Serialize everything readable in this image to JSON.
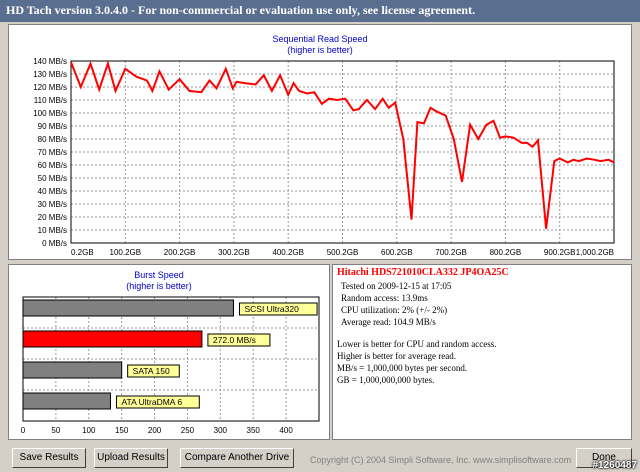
{
  "window": {
    "title": "HD Tach version 3.0.4.0 - For non-commercial or evaluation use only, see license agreement."
  },
  "chart_data": [
    {
      "type": "line",
      "title": "Sequential Read Speed",
      "subtitle": "(higher is better)",
      "xlabel": "",
      "ylabel": "",
      "xlim": [
        0,
        1000
      ],
      "ylim": [
        0,
        140
      ],
      "x_ticks": [
        "0.2GB",
        "100.2GB",
        "200.2GB",
        "300.2GB",
        "400.2GB",
        "500.2GB",
        "600.2GB",
        "700.2GB",
        "800.2GB",
        "900.2GB",
        "1,000.2GB"
      ],
      "y_ticks": [
        "0 MB/s",
        "10 MB/s",
        "20 MB/s",
        "30 MB/s",
        "40 MB/s",
        "50 MB/s",
        "60 MB/s",
        "70 MB/s",
        "80 MB/s",
        "90 MB/s",
        "100 MB/s",
        "110 MB/s",
        "120 MB/s",
        "130 MB/s",
        "140 MB/s"
      ],
      "grid": true,
      "series_color": "#ff0000",
      "x": [
        0,
        18,
        36,
        52,
        68,
        82,
        100,
        120,
        140,
        150,
        163,
        180,
        200,
        218,
        240,
        255,
        268,
        285,
        298,
        305,
        320,
        340,
        355,
        370,
        385,
        400,
        410,
        420,
        435,
        448,
        462,
        475,
        490,
        505,
        520,
        530,
        545,
        560,
        574,
        585,
        597,
        612,
        627,
        638,
        650,
        662,
        674,
        690,
        705,
        720,
        735,
        750,
        765,
        778,
        790,
        800,
        815,
        830,
        840,
        850,
        860,
        875,
        890,
        900,
        915,
        925,
        935,
        950,
        965,
        975,
        990,
        1000
      ],
      "values": [
        139,
        120,
        138,
        118,
        138,
        117,
        134,
        128,
        125,
        117,
        132,
        118,
        126,
        117,
        116,
        125,
        119,
        134,
        119,
        124,
        123,
        122,
        129,
        117,
        129,
        114,
        123,
        117,
        115,
        116,
        107,
        111,
        110,
        111,
        102,
        103,
        110,
        103,
        111,
        104,
        108,
        80,
        18,
        93,
        92,
        104,
        101,
        98,
        80,
        47,
        91,
        80,
        91,
        94,
        81,
        82,
        81,
        77,
        77,
        74,
        79,
        11,
        63,
        65,
        62,
        64,
        63,
        65,
        64,
        63,
        64,
        62
      ]
    },
    {
      "type": "bar",
      "orientation": "horizontal",
      "title": "Burst Speed",
      "subtitle": "(higher is better)",
      "xlim": [
        0,
        450
      ],
      "x_ticks": [
        "0",
        "50",
        "100",
        "150",
        "200",
        "250",
        "300",
        "350",
        "400"
      ],
      "categories": [
        "SCSI Ultra320",
        "272.0 MB/s",
        "SATA 150",
        "ATA UltraDMA 6"
      ],
      "values": [
        320,
        272,
        150,
        133
      ],
      "colors": [
        "#808080",
        "#ff0000",
        "#808080",
        "#808080"
      ]
    }
  ],
  "info": {
    "drive": "Hitachi HDS721010CLA332 JP4OA25C",
    "tested": "Tested on 2009-12-15 at 17:05",
    "random_access": "Random access: 13.9ms",
    "cpu": "CPU utilization: 2% (+/- 2%)",
    "average_read": "Average read: 104.9 MB/s",
    "note1": "Lower is better for CPU and random access.",
    "note2": "Higher is better for average read.",
    "note3": "MB/s = 1,000,000 bytes per second.",
    "note4": "GB = 1,000,000,000 bytes."
  },
  "buttons": {
    "save_label": "Save Results",
    "upload_label": "Upload Results",
    "compare_label": "Compare Another Drive",
    "done_label": "Done"
  },
  "footer": {
    "copyright": "Copyright (C) 2004 Simpli Software, Inc. www.simplisoftware.com"
  },
  "watermark": "#1260487",
  "colors": {
    "accent": "#ff0000",
    "title_bar": "#5a6f8f",
    "label_fill": "#ffff99",
    "heading": "#0000cc"
  }
}
